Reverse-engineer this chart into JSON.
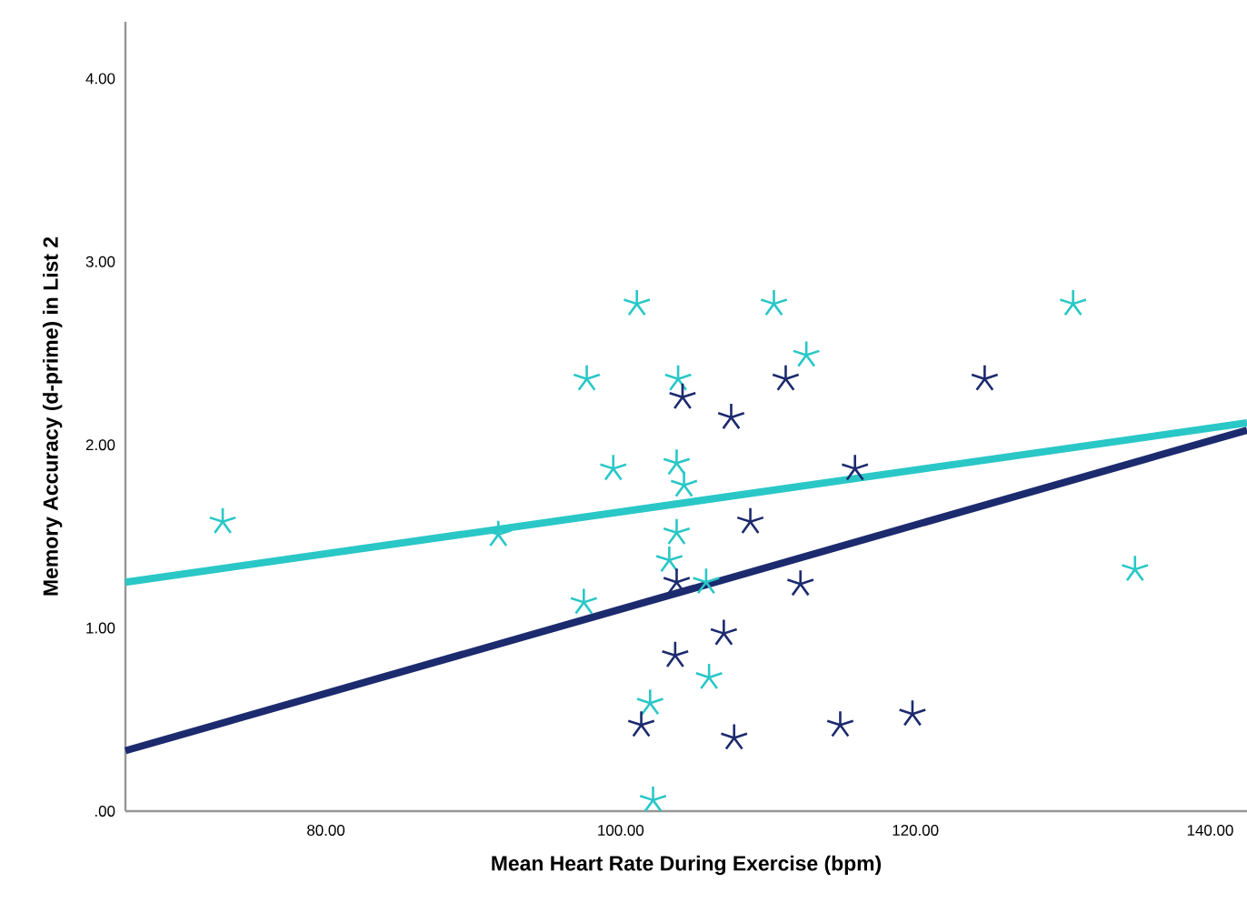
{
  "chart_data": {
    "type": "scatter",
    "xlabel": "Mean Heart Rate During Exercise (bpm)",
    "ylabel": "Memory Accuracy (d-prime) in List 2",
    "xlim": [
      66.4,
      142.5
    ],
    "ylim": [
      0,
      4.31
    ],
    "xticks": [
      {
        "value": 80,
        "label": "80.00"
      },
      {
        "value": 100,
        "label": "100.00"
      },
      {
        "value": 120,
        "label": "120.00"
      },
      {
        "value": 140,
        "label": "140.00"
      }
    ],
    "yticks": [
      {
        "value": 0,
        "label": ".00"
      },
      {
        "value": 1,
        "label": "1.00"
      },
      {
        "value": 2,
        "label": "2.00"
      },
      {
        "value": 3,
        "label": "3.00"
      },
      {
        "value": 4,
        "label": "4.00"
      }
    ],
    "grid": false,
    "marker": "cross",
    "series": [
      {
        "color": "#2ac7c7",
        "x": [
          73.0,
          91.7,
          97.5,
          97.7,
          99.5,
          101.1,
          102.0,
          102.2,
          103.9,
          103.8,
          104.3,
          103.8,
          103.3,
          105.8,
          106.0,
          110.4,
          112.6,
          130.7,
          134.9
        ],
        "values": [
          1.58,
          1.51,
          1.14,
          2.36,
          1.87,
          2.77,
          0.59,
          0.06,
          2.36,
          1.9,
          1.78,
          1.52,
          1.37,
          1.25,
          0.73,
          2.77,
          2.49,
          2.77,
          1.32
        ]
      },
      {
        "color": "#1c2a6e",
        "x": [
          104.2,
          107.5,
          111.2,
          124.7,
          115.9,
          108.8,
          103.8,
          112.2,
          107.0,
          103.7,
          101.4,
          107.7,
          114.9,
          119.8
        ],
        "values": [
          2.26,
          2.15,
          2.36,
          2.36,
          1.87,
          1.58,
          1.25,
          1.24,
          0.97,
          0.85,
          0.47,
          0.4,
          0.47,
          0.53
        ]
      },
      {
        "type": "line",
        "marker": "none",
        "color": "#2ac7c7",
        "x": [
          66.4,
          142.5
        ],
        "values": [
          1.25,
          2.12
        ]
      },
      {
        "type": "line",
        "marker": "none",
        "color": "#1c2a6e",
        "x": [
          66.4,
          142.5
        ],
        "values": [
          0.33,
          2.08
        ]
      }
    ]
  }
}
